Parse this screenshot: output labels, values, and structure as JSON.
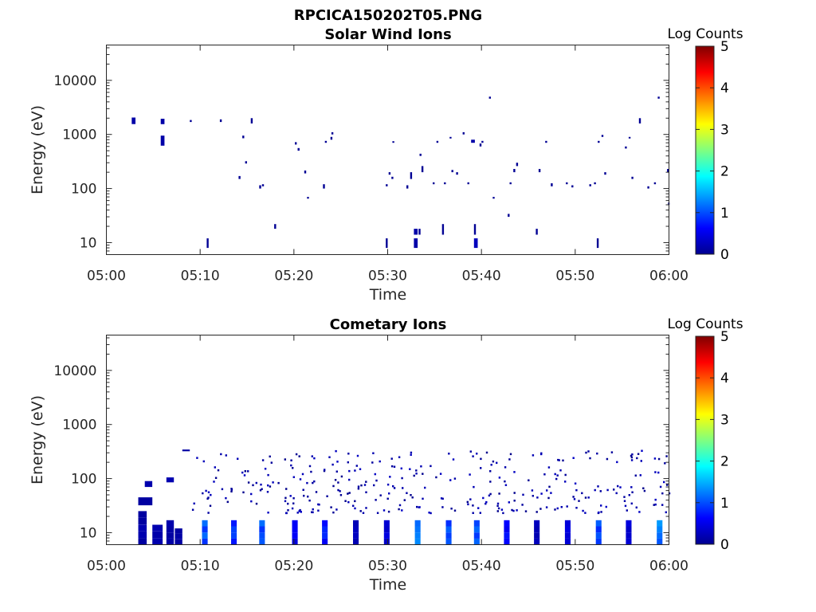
{
  "figure": {
    "title": "RPCICA150202T05.PNG"
  },
  "chart_data": [
    {
      "type": "heatmap",
      "title": "Solar Wind Ions",
      "xlabel": "Time",
      "ylabel": "Energy (eV)",
      "x_ticks": [
        "05:00",
        "05:10",
        "05:20",
        "05:30",
        "05:40",
        "05:50",
        "06:00"
      ],
      "xlim": [
        0,
        60
      ],
      "y_scale": "log",
      "y_ticks": [
        "10",
        "100",
        "1000",
        "10000"
      ],
      "ylim": [
        6,
        45000
      ],
      "colorbar": {
        "label": "Log Counts",
        "ticks": [
          "0",
          "1",
          "2",
          "3",
          "4",
          "5"
        ],
        "range": [
          0,
          5
        ],
        "colormap": "jet"
      },
      "cells": [
        [
          2.7,
          3.1,
          1550,
          2050,
          0.2
        ],
        [
          5.8,
          6.2,
          1550,
          1950,
          0.2
        ],
        [
          5.8,
          6.2,
          620,
          950,
          0.2
        ],
        [
          8.9,
          9.1,
          1700,
          1850,
          0.1
        ],
        [
          10.7,
          10.9,
          8,
          12,
          0.1
        ],
        [
          12.1,
          12.3,
          1700,
          1900,
          0.1
        ],
        [
          14.1,
          14.3,
          150,
          170,
          0.1
        ],
        [
          14.5,
          14.7,
          850,
          950,
          0.1
        ],
        [
          14.8,
          15.0,
          290,
          320,
          0.1
        ],
        [
          15.4,
          15.6,
          1600,
          2000,
          0.1
        ],
        [
          16.3,
          16.5,
          100,
          115,
          0.1
        ],
        [
          16.6,
          16.8,
          110,
          120,
          0.1
        ],
        [
          17.9,
          18.1,
          18,
          22,
          0.1
        ],
        [
          20.1,
          20.3,
          650,
          720,
          0.1
        ],
        [
          20.4,
          20.6,
          500,
          560,
          0.1
        ],
        [
          21.1,
          21.3,
          190,
          215,
          0.1
        ],
        [
          21.4,
          21.6,
          65,
          70,
          0.1
        ],
        [
          23.1,
          23.3,
          100,
          120,
          0.1
        ],
        [
          23.3,
          23.5,
          700,
          760,
          0.1
        ],
        [
          23.9,
          24.1,
          800,
          900,
          0.1
        ],
        [
          24.0,
          24.2,
          1000,
          1100,
          0.1
        ],
        [
          29.8,
          30.0,
          8,
          12,
          0.1
        ],
        [
          29.8,
          30.0,
          110,
          120,
          0.1
        ],
        [
          30.1,
          30.3,
          180,
          200,
          0.1
        ],
        [
          30.5,
          30.7,
          700,
          750,
          0.1
        ],
        [
          30.4,
          30.6,
          150,
          165,
          0.1
        ],
        [
          32.0,
          32.2,
          100,
          115,
          0.1
        ],
        [
          32.4,
          32.6,
          150,
          200,
          0.1
        ],
        [
          32.8,
          33.2,
          8,
          12,
          0.2
        ],
        [
          32.8,
          33.2,
          14,
          18,
          0.2
        ],
        [
          33.3,
          33.5,
          14,
          18,
          0.1
        ],
        [
          33.4,
          33.6,
          400,
          440,
          0.1
        ],
        [
          33.6,
          33.8,
          200,
          260,
          0.1
        ],
        [
          34.8,
          35.0,
          120,
          130,
          0.1
        ],
        [
          35.2,
          35.4,
          700,
          760,
          0.1
        ],
        [
          35.8,
          36.0,
          14,
          22,
          0.1
        ],
        [
          36.0,
          36.2,
          120,
          130,
          0.1
        ],
        [
          36.6,
          36.8,
          850,
          900,
          0.1
        ],
        [
          36.8,
          37.0,
          200,
          220,
          0.1
        ],
        [
          37.3,
          37.5,
          180,
          200,
          0.1
        ],
        [
          38.0,
          38.2,
          1000,
          1100,
          0.1
        ],
        [
          38.5,
          38.7,
          120,
          130,
          0.1
        ],
        [
          38.9,
          39.3,
          700,
          800,
          0.2
        ],
        [
          39.2,
          39.6,
          8,
          12,
          0.3
        ],
        [
          39.2,
          39.4,
          14,
          22,
          0.1
        ],
        [
          39.8,
          40.0,
          600,
          680,
          0.1
        ],
        [
          40.0,
          40.2,
          700,
          760,
          0.1
        ],
        [
          40.8,
          41.0,
          4600,
          5000,
          0.1
        ],
        [
          41.2,
          41.4,
          65,
          70,
          0.1
        ],
        [
          42.8,
          43.0,
          30,
          34,
          0.1
        ],
        [
          43.0,
          43.2,
          120,
          130,
          0.1
        ],
        [
          43.4,
          43.6,
          200,
          230,
          0.1
        ],
        [
          43.7,
          43.9,
          260,
          300,
          0.1
        ],
        [
          45.8,
          46.0,
          14,
          18,
          0.1
        ],
        [
          46.1,
          46.3,
          200,
          230,
          0.1
        ],
        [
          46.8,
          47.0,
          700,
          760,
          0.1
        ],
        [
          47.4,
          47.6,
          110,
          125,
          0.1
        ],
        [
          49.0,
          49.2,
          120,
          130,
          0.1
        ],
        [
          49.6,
          49.8,
          105,
          115,
          0.1
        ],
        [
          51.5,
          51.7,
          110,
          120,
          0.1
        ],
        [
          52.0,
          52.2,
          120,
          130,
          0.1
        ],
        [
          52.3,
          52.5,
          8,
          12,
          0.1
        ],
        [
          52.4,
          52.6,
          700,
          760,
          0.1
        ],
        [
          52.8,
          53.0,
          900,
          980,
          0.1
        ],
        [
          53.1,
          53.3,
          180,
          200,
          0.1
        ],
        [
          55.3,
          55.5,
          550,
          600,
          0.1
        ],
        [
          55.7,
          55.9,
          850,
          900,
          0.1
        ],
        [
          56.0,
          56.2,
          150,
          165,
          0.1
        ],
        [
          56.8,
          57.0,
          1600,
          2000,
          0.1
        ],
        [
          57.7,
          57.9,
          100,
          110,
          0.1
        ],
        [
          58.4,
          58.6,
          120,
          130,
          0.1
        ],
        [
          58.8,
          59.0,
          4600,
          5000,
          0.1
        ],
        [
          59.8,
          60.0,
          200,
          230,
          0.1
        ],
        [
          59.9,
          60.0,
          50,
          55,
          0.1
        ]
      ]
    },
    {
      "type": "heatmap",
      "title": "Cometary Ions",
      "xlabel": "Time",
      "ylabel": "Energy (eV)",
      "x_ticks": [
        "05:00",
        "05:10",
        "05:20",
        "05:30",
        "05:40",
        "05:50",
        "06:00"
      ],
      "xlim": [
        0,
        60
      ],
      "y_scale": "log",
      "y_ticks": [
        "10",
        "100",
        "1000",
        "10000"
      ],
      "ylim": [
        6,
        45000
      ],
      "colorbar": {
        "label": "Log Counts",
        "ticks": [
          "0",
          "1",
          "2",
          "3",
          "4",
          "5"
        ],
        "range": [
          0,
          5
        ],
        "colormap": "jet"
      },
      "columns": [
        {
          "x": [
            3.4,
            4.3
          ],
          "lo": 6,
          "hi": 25,
          "v": 0.2
        },
        {
          "x": [
            3.4,
            4.9
          ],
          "lo": 32,
          "hi": 45,
          "v": 0.2
        },
        {
          "x": [
            4.9,
            6.0
          ],
          "lo": 6,
          "hi": 14,
          "v": 0.2
        },
        {
          "x": [
            4.1,
            4.9
          ],
          "lo": 70,
          "hi": 90,
          "v": 0.2
        },
        {
          "x": [
            6.4,
            7.2
          ],
          "lo": 6,
          "hi": 17,
          "v": 0.2
        },
        {
          "x": [
            6.4,
            7.2
          ],
          "lo": 85,
          "hi": 105,
          "v": 0.2
        },
        {
          "x": [
            7.3,
            8.1
          ],
          "lo": 6,
          "hi": 12,
          "v": 0.2
        },
        {
          "x": [
            8.1,
            8.9
          ],
          "lo": 320,
          "hi": 345,
          "v": 0.2
        },
        {
          "x": [
            10.2,
            10.8
          ],
          "lo": 6,
          "hi": 17,
          "v": 1.0
        },
        {
          "x": [
            13.3,
            13.9
          ],
          "lo": 6,
          "hi": 17,
          "v": 0.8
        },
        {
          "x": [
            16.3,
            16.9
          ],
          "lo": 6,
          "hi": 17,
          "v": 1.0
        },
        {
          "x": [
            19.8,
            20.4
          ],
          "lo": 6,
          "hi": 17,
          "v": 0.5
        },
        {
          "x": [
            23.0,
            23.6
          ],
          "lo": 6,
          "hi": 17,
          "v": 0.7
        },
        {
          "x": [
            26.3,
            26.9
          ],
          "lo": 6,
          "hi": 17,
          "v": 0.3
        },
        {
          "x": [
            29.6,
            30.2
          ],
          "lo": 6,
          "hi": 17,
          "v": 0.4
        },
        {
          "x": [
            32.9,
            33.5
          ],
          "lo": 6,
          "hi": 17,
          "v": 1.2
        },
        {
          "x": [
            36.2,
            36.8
          ],
          "lo": 6,
          "hi": 17,
          "v": 1.0
        },
        {
          "x": [
            39.2,
            39.8
          ],
          "lo": 6,
          "hi": 17,
          "v": 1.1
        },
        {
          "x": [
            42.4,
            43.0
          ],
          "lo": 6,
          "hi": 17,
          "v": 0.6
        },
        {
          "x": [
            45.6,
            46.2
          ],
          "lo": 6,
          "hi": 17,
          "v": 0.3
        },
        {
          "x": [
            48.9,
            49.5
          ],
          "lo": 6,
          "hi": 17,
          "v": 0.5
        },
        {
          "x": [
            52.2,
            52.8
          ],
          "lo": 6,
          "hi": 17,
          "v": 1.0
        },
        {
          "x": [
            55.4,
            56.0
          ],
          "lo": 6,
          "hi": 17,
          "v": 0.4
        },
        {
          "x": [
            58.7,
            59.3
          ],
          "lo": 6,
          "hi": 17,
          "v": 1.2
        }
      ],
      "scatter": {
        "x_range": [
          9,
          60
        ],
        "e_range": [
          22,
          320
        ],
        "count": 340,
        "v_range": [
          0.05,
          0.35
        ]
      }
    }
  ]
}
